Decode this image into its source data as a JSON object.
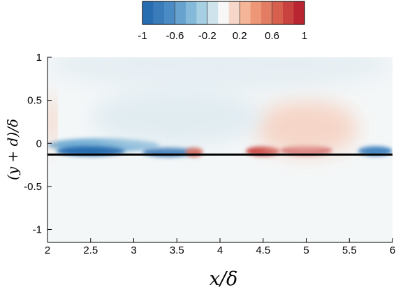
{
  "chart_data": {
    "type": "heatmap",
    "title": "",
    "xlabel": "x/δ",
    "ylabel": "(y + d)/δ",
    "xlim": [
      2,
      6
    ],
    "ylim": [
      -1.15,
      1
    ],
    "x_ticks": [
      2,
      2.5,
      3,
      3.5,
      4,
      4.5,
      5,
      5.5,
      6
    ],
    "x_tick_labels": [
      "2",
      "2.5",
      "3",
      "3.5",
      "4",
      "4.5",
      "5",
      "5.5",
      "6"
    ],
    "y_ticks": [
      -1,
      -0.5,
      0,
      0.5,
      1
    ],
    "y_tick_labels": [
      "-1",
      "-0.5",
      "0",
      "0.5",
      "1"
    ],
    "wall_y": -0.13,
    "colorbar": {
      "min": -1,
      "max": 1,
      "levels": 15,
      "ticks": [
        -1,
        -0.6,
        -0.2,
        0.2,
        0.6,
        1
      ],
      "tick_labels": [
        "-1",
        "-0.6",
        "-0.2",
        "0.2",
        "0.6",
        "1"
      ],
      "colormap": [
        "#2166ac",
        "#4a8bc3",
        "#92c5de",
        "#f7f7f7",
        "#f4a582",
        "#d6604d",
        "#b2182b"
      ]
    },
    "field_features": [
      {
        "kind": "negative-band",
        "x_range": [
          2,
          3.3
        ],
        "y_center": -0.02,
        "value": -0.45
      },
      {
        "kind": "negative-streak",
        "x_range": [
          2.1,
          2.9
        ],
        "y_center": -0.09,
        "value": -0.95
      },
      {
        "kind": "negative-streak",
        "x_range": [
          3.1,
          3.7
        ],
        "y_center": -0.1,
        "value": -0.9
      },
      {
        "kind": "negative-streak",
        "x_range": [
          5.6,
          6.0
        ],
        "y_center": -0.09,
        "value": -0.7
      },
      {
        "kind": "positive-blob",
        "x_range": [
          4.7,
          5.3
        ],
        "y_center": -0.08,
        "value": 0.95
      },
      {
        "kind": "positive-blob",
        "x_range": [
          4.3,
          4.7
        ],
        "y_center": -0.09,
        "value": 0.8
      },
      {
        "kind": "positive-blob",
        "x_range": [
          3.6,
          3.8
        ],
        "y_center": -0.1,
        "value": 0.7
      },
      {
        "kind": "positive-haze",
        "x_range": [
          4.4,
          5.6
        ],
        "y_center": 0.18,
        "value": 0.15
      },
      {
        "kind": "positive-haze",
        "x_range": [
          2.0,
          2.1
        ],
        "y_center": 0.25,
        "value": 0.25
      },
      {
        "kind": "negative-haze",
        "x_range": [
          2.0,
          6.0
        ],
        "y_center": 0.92,
        "value": -0.06
      },
      {
        "kind": "negative-haze",
        "x_range": [
          2.5,
          4.5
        ],
        "y_center": 0.3,
        "value": -0.08
      }
    ]
  }
}
